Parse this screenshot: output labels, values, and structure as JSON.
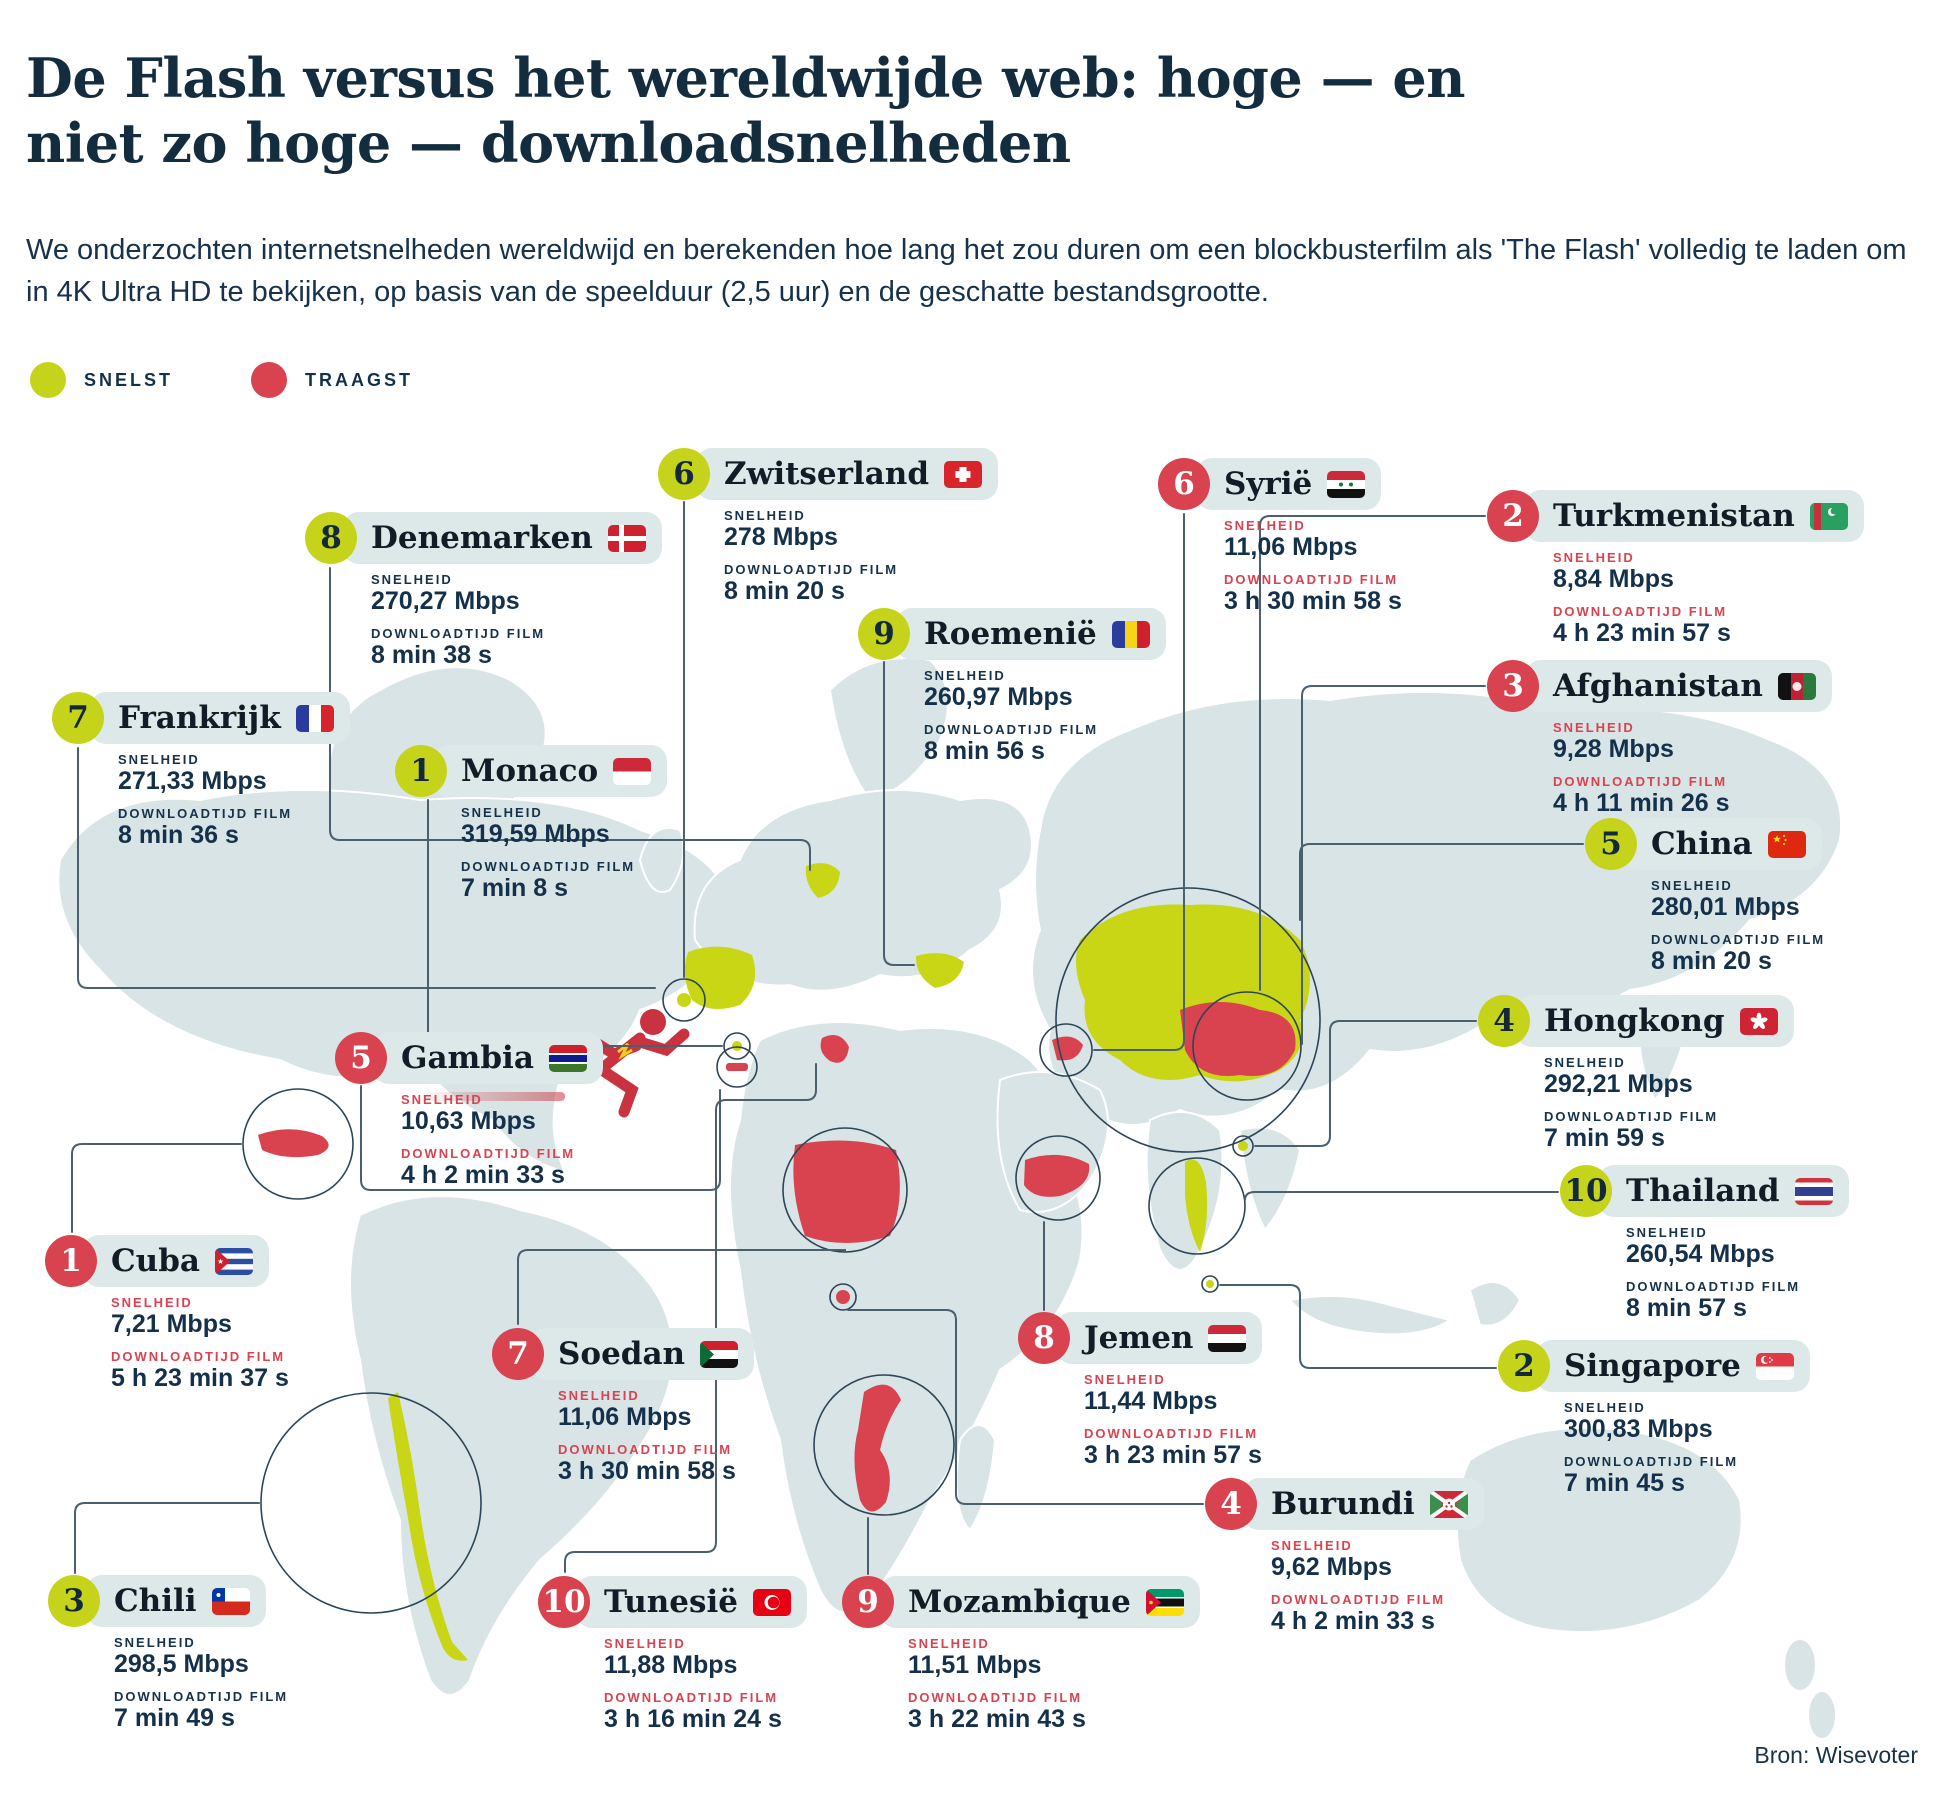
{
  "title": "De Flash versus het wereldwijde web: hoge — en niet zo hoge — downloadsnelheden",
  "subtitle": "We onderzochten internetsnelheden wereldwijd en berekenden hoe lang het zou duren om een blockbusterfilm als 'The Flash' volledig te laden om in 4K Ultra HD te bekijken, op basis van de speelduur (2,5 uur) en de geschatte bestandsgrootte.",
  "legend": {
    "fastest": "SNELST",
    "slowest": "TRAAGST"
  },
  "labels": {
    "speed": "SNELHEID",
    "download": "DOWNLOADTIJD FILM"
  },
  "source": "Bron: Wisevoter",
  "colors": {
    "fastest": "#c6d31b",
    "slowest": "#d8434f",
    "text_navy": "#14304a",
    "pill_background": "#dde9e8",
    "map_land": "#d8e4e5"
  },
  "countries": [
    {
      "rank": 1,
      "group": "snelst",
      "name": "Monaco",
      "flag_icon": "monaco-flag-icon",
      "speed": "319,59 Mbps",
      "download_time": "7 min 8 s"
    },
    {
      "rank": 2,
      "group": "snelst",
      "name": "Singapore",
      "flag_icon": "singapore-flag-icon",
      "speed": "300,83 Mbps",
      "download_time": "7 min 45 s"
    },
    {
      "rank": 3,
      "group": "snelst",
      "name": "Chili",
      "flag_icon": "chile-flag-icon",
      "speed": "298,5 Mbps",
      "download_time": "7 min 49 s"
    },
    {
      "rank": 4,
      "group": "snelst",
      "name": "Hongkong",
      "flag_icon": "hongkong-flag-icon",
      "speed": "292,21 Mbps",
      "download_time": "7 min 59 s"
    },
    {
      "rank": 5,
      "group": "snelst",
      "name": "China",
      "flag_icon": "china-flag-icon",
      "speed": "280,01 Mbps",
      "download_time": "8 min 20 s"
    },
    {
      "rank": 6,
      "group": "snelst",
      "name": "Zwitserland",
      "flag_icon": "switzerland-flag-icon",
      "speed": "278 Mbps",
      "download_time": "8 min 20 s"
    },
    {
      "rank": 7,
      "group": "snelst",
      "name": "Frankrijk",
      "flag_icon": "france-flag-icon",
      "speed": "271,33 Mbps",
      "download_time": "8 min 36 s"
    },
    {
      "rank": 8,
      "group": "snelst",
      "name": "Denemarken",
      "flag_icon": "denmark-flag-icon",
      "speed": "270,27 Mbps",
      "download_time": "8 min 38 s"
    },
    {
      "rank": 9,
      "group": "snelst",
      "name": "Roemenië",
      "flag_icon": "romania-flag-icon",
      "speed": "260,97 Mbps",
      "download_time": "8 min 56 s"
    },
    {
      "rank": 10,
      "group": "snelst",
      "name": "Thailand",
      "flag_icon": "thailand-flag-icon",
      "speed": "260,54 Mbps",
      "download_time": "8 min 57 s"
    },
    {
      "rank": 1,
      "group": "traagst",
      "name": "Cuba",
      "flag_icon": "cuba-flag-icon",
      "speed": "7,21 Mbps",
      "download_time": "5 h 23 min 37 s"
    },
    {
      "rank": 2,
      "group": "traagst",
      "name": "Turkmenistan",
      "flag_icon": "turkmenistan-flag-icon",
      "speed": "8,84 Mbps",
      "download_time": "4 h 23 min 57 s"
    },
    {
      "rank": 3,
      "group": "traagst",
      "name": "Afghanistan",
      "flag_icon": "afghanistan-flag-icon",
      "speed": "9,28 Mbps",
      "download_time": "4 h 11 min 26 s"
    },
    {
      "rank": 4,
      "group": "traagst",
      "name": "Burundi",
      "flag_icon": "burundi-flag-icon",
      "speed": "9,62 Mbps",
      "download_time": "4 h 2 min 33 s"
    },
    {
      "rank": 5,
      "group": "traagst",
      "name": "Gambia",
      "flag_icon": "gambia-flag-icon",
      "speed": "10,63 Mbps",
      "download_time": "4 h 2 min 33 s"
    },
    {
      "rank": 6,
      "group": "traagst",
      "name": "Syrië",
      "flag_icon": "syria-flag-icon",
      "speed": "11,06 Mbps",
      "download_time": "3 h 30 min 58 s"
    },
    {
      "rank": 7,
      "group": "traagst",
      "name": "Soedan",
      "flag_icon": "sudan-flag-icon",
      "speed": "11,06 Mbps",
      "download_time": "3 h 30 min 58 s"
    },
    {
      "rank": 8,
      "group": "traagst",
      "name": "Jemen",
      "flag_icon": "yemen-flag-icon",
      "speed": "11,44 Mbps",
      "download_time": "3 h 23 min 57 s"
    },
    {
      "rank": 9,
      "group": "traagst",
      "name": "Mozambique",
      "flag_icon": "mozambique-flag-icon",
      "speed": "11,51 Mbps",
      "download_time": "3 h 22 min 43 s"
    },
    {
      "rank": 10,
      "group": "traagst",
      "name": "Tunesië",
      "flag_icon": "tunisia-flag-icon",
      "speed": "11,88 Mbps",
      "download_time": "3 h 16 min 24 s"
    }
  ]
}
